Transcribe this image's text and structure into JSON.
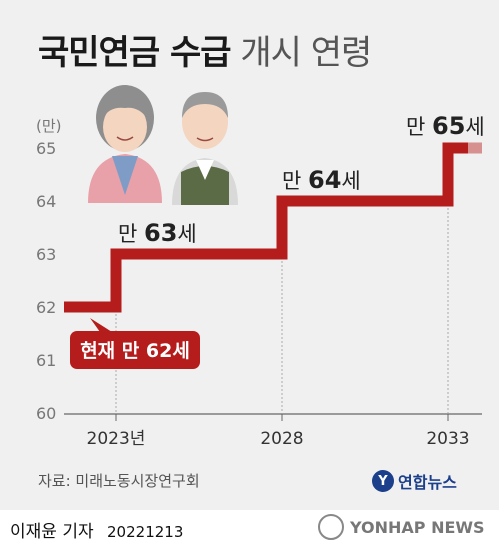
{
  "title": {
    "bold": "국민연금 수급",
    "light": "개시 연령"
  },
  "chart_data": {
    "type": "line",
    "step": true,
    "unit_label": "(만)",
    "y_ticks": [
      60,
      61,
      62,
      63,
      64,
      65
    ],
    "ylim": [
      60,
      65
    ],
    "x_tick_labels": [
      "2023년",
      "2028",
      "2033"
    ],
    "series": [
      {
        "values": [
          {
            "year": 2021,
            "age": 62
          },
          {
            "year": 2023,
            "age": 62
          },
          {
            "year": 2023,
            "age": 63
          },
          {
            "year": 2028,
            "age": 63
          },
          {
            "year": 2028,
            "age": 64
          },
          {
            "year": 2033,
            "age": 64
          },
          {
            "year": 2033,
            "age": 65
          },
          {
            "year": 2034,
            "age": 65
          }
        ]
      }
    ],
    "annotations": [
      {
        "prefix": "만 ",
        "num": "63",
        "suffix": "세"
      },
      {
        "prefix": "만 ",
        "num": "64",
        "suffix": "세"
      },
      {
        "prefix": "만 ",
        "num": "65",
        "suffix": "세"
      }
    ],
    "current_label": "현재 만 62세",
    "colors": {
      "line": "#b51c1c",
      "label_bg": "#b51c1c",
      "grid": "#aaaaaa",
      "axis": "#666666"
    }
  },
  "source": "자료: 미래노동시장연구회",
  "logo": {
    "text": "연합뉴스"
  },
  "byline": "이재윤 기자",
  "date": "20221213",
  "watermark": "YONHAP NEWS"
}
